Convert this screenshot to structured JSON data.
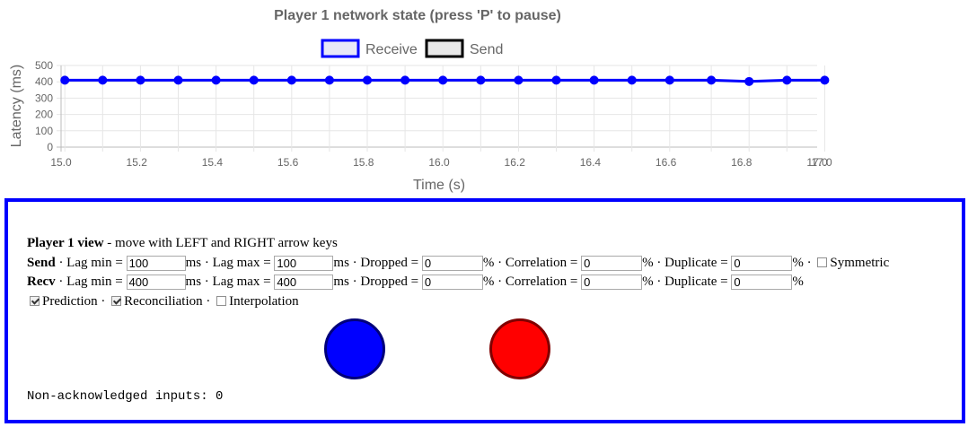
{
  "chart_data": {
    "type": "line",
    "title": "Player 1 network state (press 'P' to pause)",
    "xlabel": "Time (s)",
    "ylabel": "Latency (ms)",
    "xlim": [
      15.0,
      17.0
    ],
    "ylim": [
      0,
      500
    ],
    "x_ticks": [
      "15.0",
      "15.2",
      "15.4",
      "15.6",
      "15.8",
      "16.0",
      "16.2",
      "16.4",
      "16.6",
      "16.8",
      "17.0",
      "17.0"
    ],
    "y_ticks": [
      "500",
      "400",
      "300",
      "200",
      "100",
      "0"
    ],
    "legend_position": "top-center",
    "grid": true,
    "series": [
      {
        "name": "Receive",
        "color": "#0000ff",
        "fill": "#e8e8f8",
        "x": [
          15.01,
          15.11,
          15.21,
          15.31,
          15.41,
          15.51,
          15.61,
          15.71,
          15.81,
          15.91,
          16.01,
          16.11,
          16.21,
          16.31,
          16.41,
          16.51,
          16.61,
          16.72,
          16.82,
          16.92,
          17.02
        ],
        "values": [
          410,
          410,
          410,
          410,
          410,
          410,
          410,
          410,
          410,
          410,
          410,
          410,
          410,
          410,
          410,
          410,
          410,
          410,
          402,
          410,
          410
        ]
      },
      {
        "name": "Send",
        "color": "#000000",
        "fill": "#e8e8e8",
        "x": [],
        "values": []
      }
    ]
  },
  "panel": {
    "title": "Player 1 view",
    "subtitle": " - move with LEFT and RIGHT arrow keys",
    "send_label": "Send",
    "recv_label": "Recv",
    "lag_min_label": " · Lag min = ",
    "lag_max_label": "ms · Lag max = ",
    "dropped_label": "ms · Dropped = ",
    "correlation_label": "% · Correlation = ",
    "duplicate_label": "% · Duplicate = ",
    "pct_sep": "% · ",
    "pct_end": "%",
    "symmetric_label": "Symmetric",
    "send": {
      "lag_min": "100",
      "lag_max": "100",
      "dropped": "0",
      "correlation": "0",
      "duplicate": "0"
    },
    "recv": {
      "lag_min": "400",
      "lag_max": "400",
      "dropped": "0",
      "correlation": "0",
      "duplicate": "0"
    },
    "prediction_label": "Prediction",
    "reconciliation_label": "Reconciliation",
    "interpolation_label": "Interpolation",
    "sep": " · ",
    "status_text": "Non-acknowledged inputs: 0",
    "ball_colors": {
      "blue": "#0000ff",
      "blue_border": "#00007a",
      "red": "#ff0000",
      "red_border": "#800000"
    }
  }
}
